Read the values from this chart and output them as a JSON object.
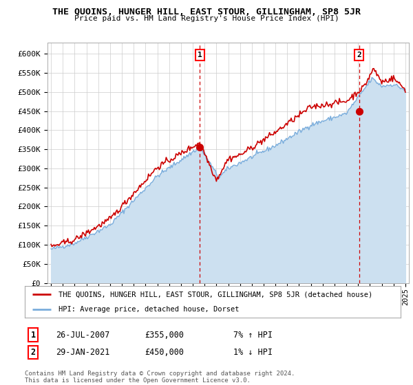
{
  "title": "THE QUOINS, HUNGER HILL, EAST STOUR, GILLINGHAM, SP8 5JR",
  "subtitle": "Price paid vs. HM Land Registry's House Price Index (HPI)",
  "ylabel_ticks": [
    "£0",
    "£50K",
    "£100K",
    "£150K",
    "£200K",
    "£250K",
    "£300K",
    "£350K",
    "£400K",
    "£450K",
    "£500K",
    "£550K",
    "£600K"
  ],
  "ylim": [
    0,
    620000
  ],
  "yticks": [
    0,
    50000,
    100000,
    150000,
    200000,
    250000,
    300000,
    350000,
    400000,
    450000,
    500000,
    550000,
    600000
  ],
  "red_line_color": "#cc0000",
  "blue_line_color": "#7aaddc",
  "blue_fill_color": "#cce0f0",
  "sale1": {
    "date": "26-JUL-2007",
    "price": 355000,
    "pct": "7%",
    "dir": "↑"
  },
  "sale2": {
    "date": "29-JAN-2021",
    "price": 450000,
    "pct": "1%",
    "dir": "↓"
  },
  "legend_red": "THE QUOINS, HUNGER HILL, EAST STOUR, GILLINGHAM, SP8 5JR (detached house)",
  "legend_blue": "HPI: Average price, detached house, Dorset",
  "footnote": "Contains HM Land Registry data © Crown copyright and database right 2024.\nThis data is licensed under the Open Government Licence v3.0.",
  "background_color": "#ffffff",
  "grid_color": "#cccccc"
}
